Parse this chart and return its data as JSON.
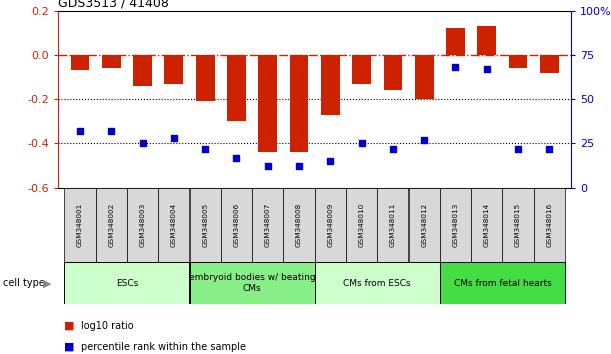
{
  "title": "GDS3513 / 41408",
  "samples": [
    "GSM348001",
    "GSM348002",
    "GSM348003",
    "GSM348004",
    "GSM348005",
    "GSM348006",
    "GSM348007",
    "GSM348008",
    "GSM348009",
    "GSM348010",
    "GSM348011",
    "GSM348012",
    "GSM348013",
    "GSM348014",
    "GSM348015",
    "GSM348016"
  ],
  "log10_ratio": [
    -0.07,
    -0.06,
    -0.14,
    -0.13,
    -0.21,
    -0.3,
    -0.44,
    -0.44,
    -0.27,
    -0.13,
    -0.16,
    -0.2,
    0.12,
    0.13,
    -0.06,
    -0.08
  ],
  "percentile_rank": [
    32,
    32,
    25,
    28,
    22,
    17,
    12,
    12,
    15,
    25,
    22,
    27,
    68,
    67,
    22,
    22
  ],
  "bar_color": "#cc2200",
  "dot_color": "#0000cc",
  "cell_types": [
    {
      "label": "ESCs",
      "start": 0,
      "end": 3,
      "color": "#ccffcc"
    },
    {
      "label": "embryoid bodies w/ beating\nCMs",
      "start": 4,
      "end": 7,
      "color": "#88ee88"
    },
    {
      "label": "CMs from ESCs",
      "start": 8,
      "end": 11,
      "color": "#ccffcc"
    },
    {
      "label": "CMs from fetal hearts",
      "start": 12,
      "end": 15,
      "color": "#44dd44"
    }
  ],
  "ylim_left": [
    -0.6,
    0.2
  ],
  "ylim_right": [
    0,
    100
  ],
  "yticks_left": [
    -0.6,
    -0.4,
    -0.2,
    0.0,
    0.2
  ],
  "yticks_right": [
    0,
    25,
    50,
    75,
    100
  ]
}
